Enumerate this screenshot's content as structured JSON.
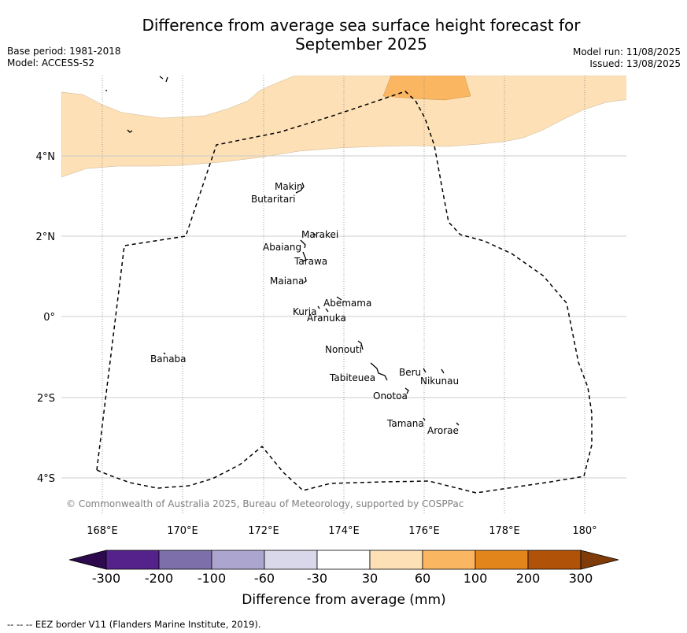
{
  "title_line1": "Difference from average sea surface height forecast for",
  "title_line2": "September 2025",
  "meta_left": {
    "base_period": "Base period: 1981-2018",
    "model": "Model: ACCESS-S2"
  },
  "meta_right": {
    "model_run": "Model run: 11/08/2025",
    "issued": "Issued: 13/08/2025"
  },
  "copyright": "© Commonwealth of Australia 2025, Bureau of Meteorology, supported by COSPPac",
  "footnote": "--  --  -- EEZ border V11 (Flanders Marine Institute, 2019).",
  "colorbar": {
    "label": "Difference from average (mm)",
    "ticks": [
      "-300",
      "-200",
      "-100",
      "-60",
      "-30",
      "30",
      "60",
      "100",
      "200",
      "300"
    ],
    "colors": [
      "#2d0a4e",
      "#54228a",
      "#7c6faa",
      "#aca5cf",
      "#d8d8ea",
      "#ffffff",
      "#fde0b5",
      "#fbb662",
      "#e2851a",
      "#b05207",
      "#7f3b08"
    ]
  },
  "map": {
    "lat_labels": [
      "4°N",
      "2°N",
      "0°",
      "2°S",
      "4°S"
    ],
    "lon_labels": [
      "168°E",
      "170°E",
      "172°E",
      "174°E",
      "176°E",
      "178°E",
      "180°"
    ],
    "islands": [
      "Makin",
      "Butaritari",
      "Marakei",
      "Abaiang",
      "Tarawa",
      "Maiana",
      "Abemama",
      "Kuria",
      "Aranuka",
      "Nonouti",
      "Tabiteuea",
      "Beru",
      "Nikunau",
      "Onotoa",
      "Tamana",
      "Arorae",
      "Banaba"
    ]
  }
}
